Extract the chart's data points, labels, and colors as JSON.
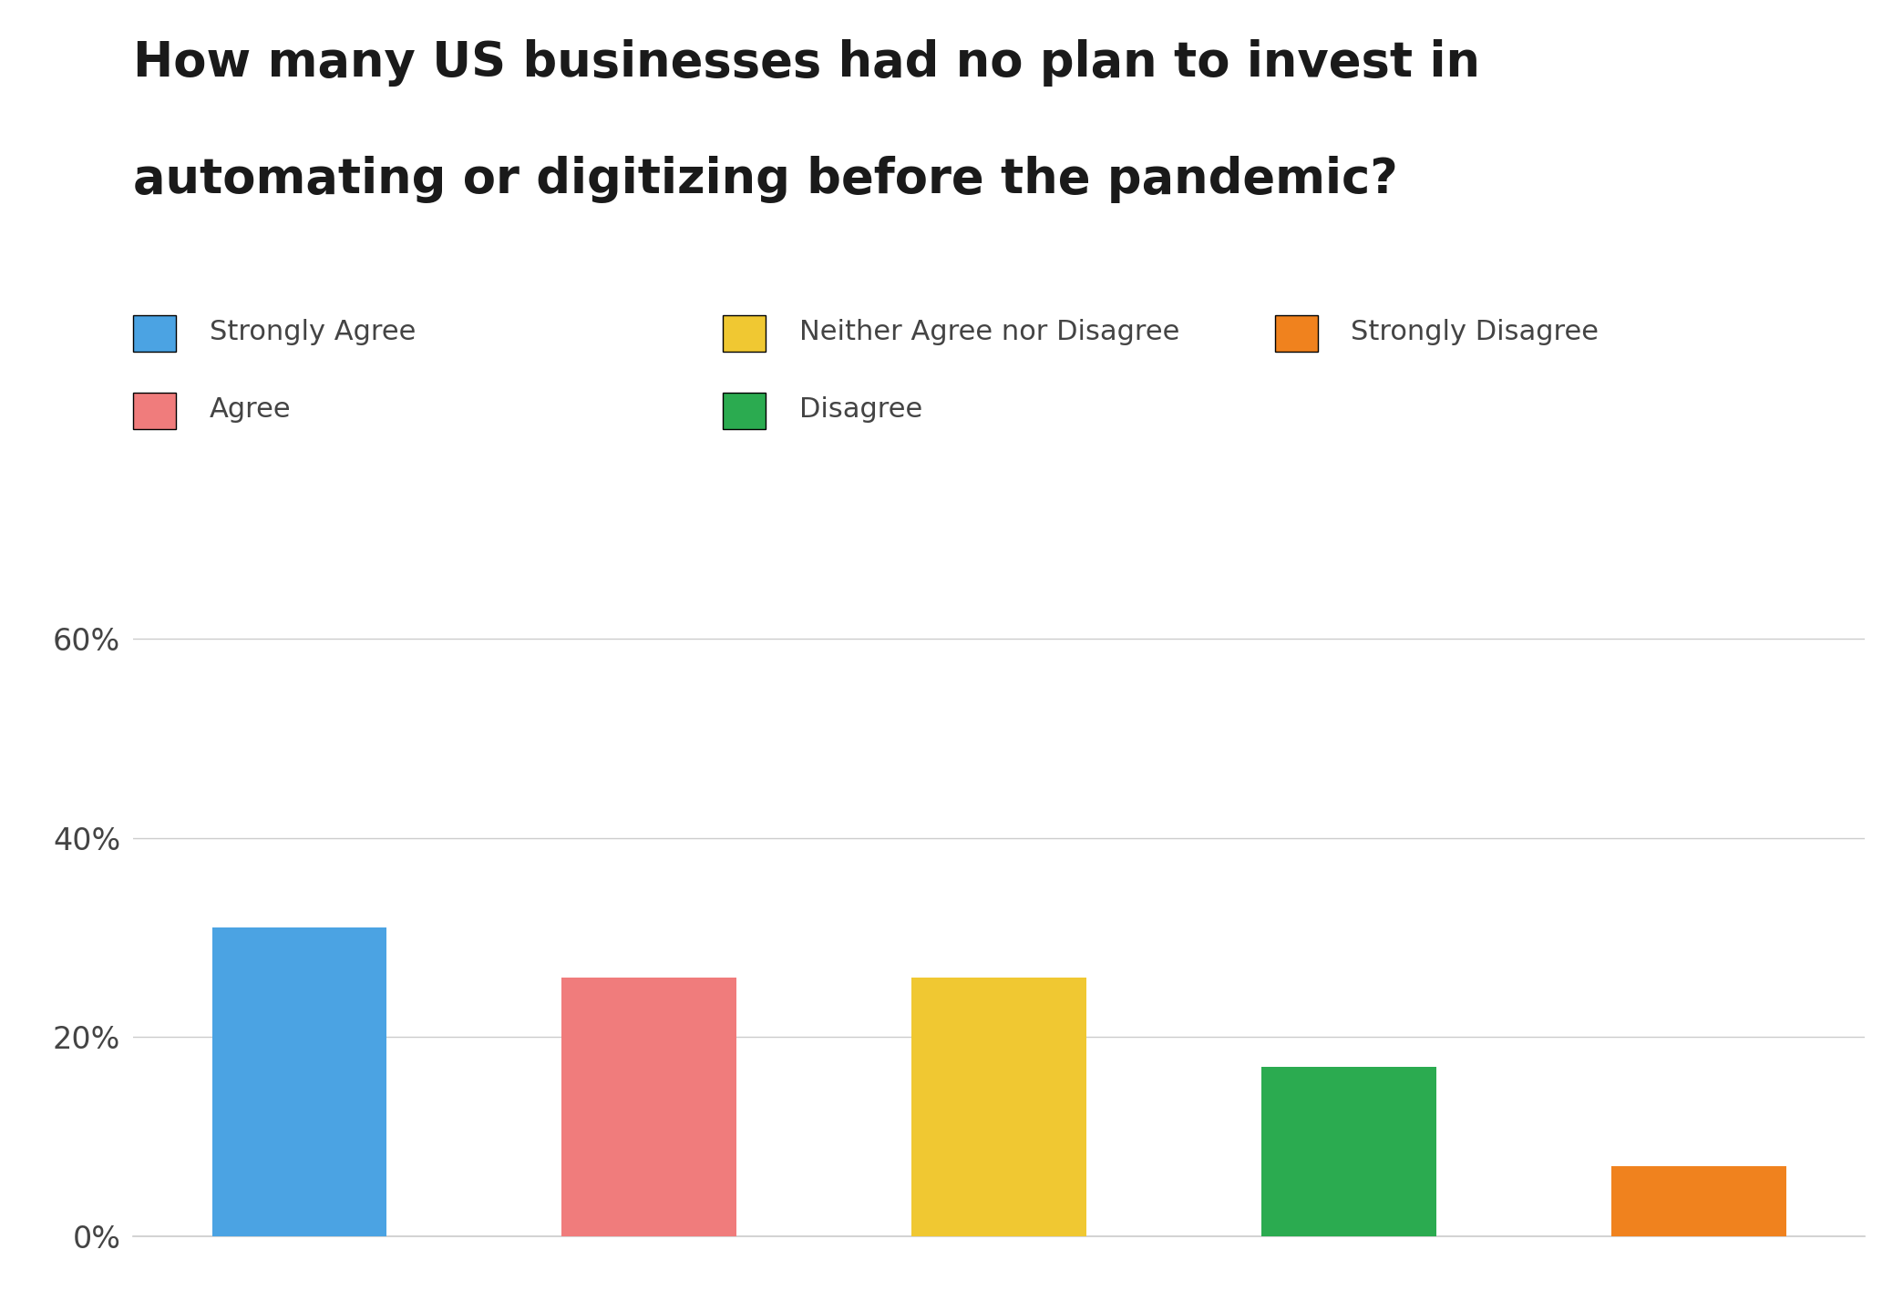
{
  "title_line1": "How many US businesses had no plan to invest in",
  "title_line2": "automating or digitizing before the pandemic?",
  "categories": [
    "Strongly Agree",
    "Agree",
    "Neither Agree nor Disagree",
    "Disagree",
    "Strongly Disagree"
  ],
  "values": [
    31,
    26,
    26,
    17,
    7
  ],
  "colors": [
    "#4ba3e3",
    "#f07c7c",
    "#f0c832",
    "#2bab50",
    "#f0821e"
  ],
  "legend_row1": [
    {
      "label": "Strongly Agree",
      "color": "#4ba3e3"
    },
    {
      "label": "Neither Agree nor Disagree",
      "color": "#f0c832"
    },
    {
      "label": "Strongly Disagree",
      "color": "#f0821e"
    }
  ],
  "legend_row2": [
    {
      "label": "Agree",
      "color": "#f07c7c"
    },
    {
      "label": "Disagree",
      "color": "#2bab50"
    }
  ],
  "yticks": [
    0,
    20,
    40,
    60
  ],
  "ylim": [
    0,
    68
  ],
  "background_color": "#ffffff",
  "title_fontsize": 38,
  "tick_fontsize": 24,
  "legend_fontsize": 22,
  "bar_width": 0.5
}
